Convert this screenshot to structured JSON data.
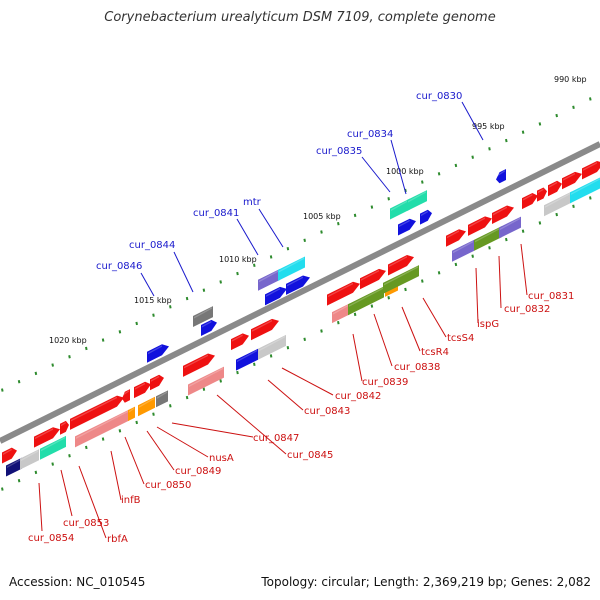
{
  "title": "Corynebacterium urealyticum DSM 7109, complete genome",
  "footer": {
    "accession": "Accession: NC_010545",
    "summary": "Topology: circular; Length: 2,369,219 bp; Genes: 2,082"
  },
  "colors": {
    "backbone": "#8a8a8a",
    "tick_dot": "#2e8b2e",
    "label_top": "#1a1acc",
    "label_bottom": "#cc1111",
    "red": "#ee1111",
    "pink": "#ee8888",
    "blue": "#1111dd",
    "cyan": "#22ddee",
    "teal": "#22ddaa",
    "purple": "#7766cc",
    "olive": "#669922",
    "orange": "#ff9900",
    "grey": "#777777",
    "silver": "#c8c8c8",
    "navy": "#111177"
  },
  "scale_labels": [
    "990 kbp",
    "995 kbp",
    "1000 kbp",
    "1005 kbp",
    "1010 kbp",
    "1015 kbp",
    "1020 kbp"
  ],
  "top_gene_labels": [
    "cur_0830",
    "cur_0834",
    "cur_0835",
    "mtr",
    "cur_0841",
    "cur_0844",
    "cur_0846"
  ],
  "bottom_gene_labels": [
    "cur_0831",
    "cur_0832",
    "ispG",
    "tcsS4",
    "tcsR4",
    "cur_0838",
    "cur_0839",
    "cur_0842",
    "cur_0843",
    "cur_0845",
    "cur_0847",
    "nusA",
    "cur_0849",
    "cur_0850",
    "infB",
    "rbfA",
    "cur_0853",
    "cur_0854"
  ]
}
